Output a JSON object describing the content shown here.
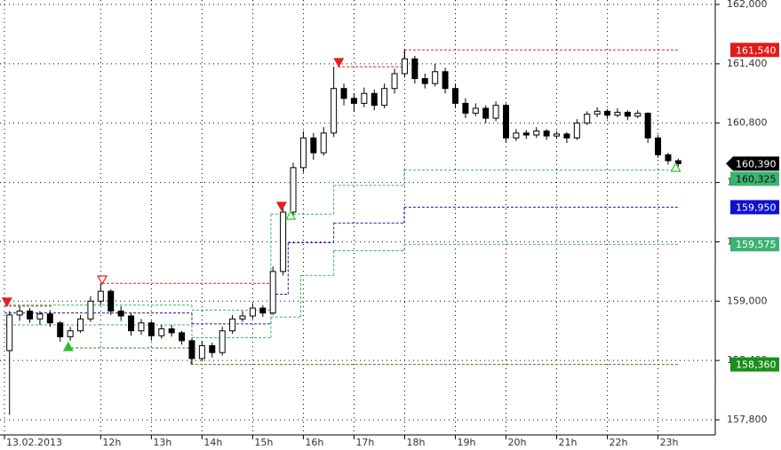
{
  "chart_data": {
    "type": "candlestick",
    "xlim": [
      10.1,
      24.13
    ],
    "xticks": [
      {
        "value": 10.1,
        "label": "13.02.2013"
      },
      {
        "value": 12,
        "label": "12h"
      },
      {
        "value": 13,
        "label": "13h"
      },
      {
        "value": 14,
        "label": "14h"
      },
      {
        "value": 15,
        "label": "15h"
      },
      {
        "value": 16,
        "label": "16h"
      },
      {
        "value": 17,
        "label": "17h"
      },
      {
        "value": 18,
        "label": "18h"
      },
      {
        "value": 19,
        "label": "19h"
      },
      {
        "value": 20,
        "label": "20h"
      },
      {
        "value": 21,
        "label": "21h"
      },
      {
        "value": 22,
        "label": "22h"
      },
      {
        "value": 23,
        "label": "23h"
      }
    ],
    "ylim": [
      157800,
      162000
    ],
    "yticks": [
      {
        "value": 157800,
        "label": "157,800"
      },
      {
        "value": 158400,
        "label": "158,400"
      },
      {
        "value": 159000,
        "label": "159,000"
      },
      {
        "value": 159600,
        "label": "159,600"
      },
      {
        "value": 160200,
        "label": "160,200"
      },
      {
        "value": 160800,
        "label": "160,800"
      },
      {
        "value": 161400,
        "label": "161,400"
      },
      {
        "value": 162000,
        "label": "162,000"
      }
    ],
    "grid": true,
    "up_color": "#ffffff",
    "down_color": "#000000",
    "x": [
      10.2,
      10.4,
      10.6,
      10.8,
      11.0,
      11.2,
      11.4,
      11.6,
      11.8,
      12.0,
      12.2,
      12.4,
      12.6,
      12.8,
      13.0,
      13.2,
      13.4,
      13.6,
      13.8,
      14.0,
      14.2,
      14.4,
      14.6,
      14.8,
      15.0,
      15.2,
      15.4,
      15.6,
      15.8,
      16.0,
      16.2,
      16.4,
      16.6,
      16.8,
      17.0,
      17.2,
      17.4,
      17.6,
      17.8,
      18.0,
      18.2,
      18.4,
      18.6,
      18.8,
      19.0,
      19.2,
      19.4,
      19.6,
      19.8,
      20.0,
      20.2,
      20.4,
      20.6,
      20.8,
      21.0,
      21.2,
      21.4,
      21.6,
      21.8,
      22.0,
      22.2,
      22.4,
      22.6,
      22.8,
      23.0,
      23.2,
      23.4
    ],
    "ohlc": [
      [
        158500,
        158900,
        157850,
        158860
      ],
      [
        158860,
        158950,
        158800,
        158900
      ],
      [
        158900,
        158930,
        158780,
        158820
      ],
      [
        158820,
        158900,
        158760,
        158870
      ],
      [
        158870,
        158910,
        158740,
        158780
      ],
      [
        158780,
        158800,
        158590,
        158640
      ],
      [
        158640,
        158740,
        158600,
        158700
      ],
      [
        158700,
        158860,
        158680,
        158820
      ],
      [
        158820,
        159050,
        158790,
        159000
      ],
      [
        159000,
        159180,
        158960,
        159100
      ],
      [
        159100,
        159120,
        158860,
        158900
      ],
      [
        158900,
        158950,
        158800,
        158850
      ],
      [
        158850,
        158880,
        158650,
        158700
      ],
      [
        158700,
        158820,
        158660,
        158780
      ],
      [
        158780,
        158800,
        158600,
        158650
      ],
      [
        158650,
        158760,
        158620,
        158720
      ],
      [
        158720,
        158760,
        158640,
        158680
      ],
      [
        158680,
        158700,
        158560,
        158600
      ],
      [
        158600,
        158630,
        158360,
        158420
      ],
      [
        158420,
        158600,
        158390,
        158550
      ],
      [
        158550,
        158580,
        158430,
        158480
      ],
      [
        158480,
        158740,
        158450,
        158700
      ],
      [
        158700,
        158860,
        158670,
        158820
      ],
      [
        158820,
        158900,
        158790,
        158850
      ],
      [
        158850,
        158980,
        158820,
        158930
      ],
      [
        158930,
        158960,
        158840,
        158880
      ],
      [
        158880,
        159350,
        158860,
        159300
      ],
      [
        159300,
        159950,
        159260,
        159900
      ],
      [
        159900,
        160400,
        159850,
        160350
      ],
      [
        160350,
        160720,
        160300,
        160650
      ],
      [
        160650,
        160700,
        160430,
        160500
      ],
      [
        160500,
        160760,
        160470,
        160700
      ],
      [
        160700,
        161370,
        160660,
        161150
      ],
      [
        161150,
        161200,
        160980,
        161050
      ],
      [
        161050,
        161100,
        160920,
        161000
      ],
      [
        161000,
        161160,
        160960,
        161100
      ],
      [
        161100,
        161140,
        160930,
        160980
      ],
      [
        160980,
        161200,
        160950,
        161150
      ],
      [
        161150,
        161350,
        161100,
        161300
      ],
      [
        161300,
        161540,
        161260,
        161450
      ],
      [
        161450,
        161480,
        161200,
        161250
      ],
      [
        161250,
        161300,
        161150,
        161200
      ],
      [
        161200,
        161400,
        161170,
        161320
      ],
      [
        161320,
        161360,
        161100,
        161150
      ],
      [
        161150,
        161200,
        160950,
        161000
      ],
      [
        161000,
        161050,
        160850,
        160900
      ],
      [
        160900,
        161000,
        160870,
        160950
      ],
      [
        160950,
        160980,
        160800,
        160850
      ],
      [
        160850,
        161020,
        160820,
        160980
      ],
      [
        160980,
        161000,
        160600,
        160650
      ],
      [
        160650,
        160740,
        160620,
        160700
      ],
      [
        160700,
        160730,
        160640,
        160680
      ],
      [
        160680,
        160760,
        160650,
        160720
      ],
      [
        160720,
        160740,
        160630,
        160670
      ],
      [
        160670,
        160720,
        160640,
        160690
      ],
      [
        160690,
        160710,
        160600,
        160650
      ],
      [
        160650,
        160840,
        160630,
        160800
      ],
      [
        160800,
        160920,
        160780,
        160890
      ],
      [
        160890,
        160960,
        160860,
        160920
      ],
      [
        160920,
        160940,
        160840,
        160880
      ],
      [
        160880,
        160950,
        160860,
        160910
      ],
      [
        160910,
        160930,
        160830,
        160870
      ],
      [
        160870,
        160930,
        160850,
        160900
      ],
      [
        160900,
        160910,
        160600,
        160650
      ],
      [
        160650,
        160680,
        160450,
        160480
      ],
      [
        160480,
        160500,
        160380,
        160420
      ],
      [
        160420,
        160440,
        160360,
        160390
      ]
    ],
    "levels": [
      {
        "color": "#e02020",
        "segments": [
          [
            10.1,
            11.06,
            158950
          ],
          [
            12.03,
            15.36,
            159180
          ],
          [
            16.68,
            17.99,
            161370
          ],
          [
            17.99,
            23.43,
            161540
          ]
        ]
      },
      {
        "color": "#3cb371",
        "segments": [
          [
            10.1,
            13.8,
            158960
          ],
          [
            13.8,
            15.36,
            158910
          ],
          [
            15.36,
            16.6,
            159880
          ],
          [
            16.6,
            17.99,
            160170
          ],
          [
            17.99,
            23.43,
            160325
          ]
        ]
      },
      {
        "color": "#1a1aa0",
        "segments": [
          [
            10.1,
            13.8,
            158880
          ],
          [
            13.8,
            15.36,
            158770
          ],
          [
            15.36,
            15.7,
            159070
          ],
          [
            15.7,
            16.6,
            159590
          ],
          [
            16.6,
            17.99,
            159790
          ],
          [
            17.99,
            23.43,
            159950
          ]
        ]
      },
      {
        "color": "#3cb371",
        "segments": [
          [
            10.1,
            13.8,
            158760
          ],
          [
            13.8,
            15.36,
            158630
          ],
          [
            15.36,
            15.95,
            158840
          ],
          [
            15.95,
            16.6,
            159260
          ],
          [
            16.6,
            17.99,
            159510
          ],
          [
            17.99,
            23.43,
            159575
          ]
        ]
      },
      {
        "color": "#1f8f1f",
        "segments": [
          [
            11.33,
            13.78,
            158527
          ],
          [
            13.78,
            23.43,
            158360
          ]
        ]
      }
    ],
    "signals": [
      {
        "x": 10.15,
        "value": 158950,
        "direction": "down",
        "filled": true,
        "color": "#e02020"
      },
      {
        "x": 12.03,
        "value": 159173,
        "direction": "down",
        "filled": false,
        "color": "#e02020"
      },
      {
        "x": 15.57,
        "value": 159918,
        "direction": "down",
        "filled": true,
        "color": "#e02020"
      },
      {
        "x": 16.7,
        "value": 161372,
        "direction": "down",
        "filled": true,
        "color": "#e02020"
      },
      {
        "x": 11.36,
        "value": 158545,
        "direction": "up",
        "filled": true,
        "color": "#2ec02e"
      },
      {
        "x": 15.75,
        "value": 159873,
        "direction": "up",
        "filled": false,
        "color": "#2ec02e"
      },
      {
        "x": 23.35,
        "value": 160358,
        "direction": "up",
        "filled": false,
        "color": "#2ec02e"
      }
    ],
    "price_labels": [
      {
        "value": 161540,
        "label": "161,540",
        "color": "#e31b1b",
        "text_color": "#ffffff",
        "arrow": false
      },
      {
        "value": 160390,
        "label": "160,390",
        "color": "#000000",
        "text_color": "#ffffff",
        "arrow": true
      },
      {
        "value": 160325,
        "label": "160,325",
        "color": "#3cb371",
        "text_color": "#111111",
        "arrow": false
      },
      {
        "value": 159950,
        "label": "159,950",
        "color": "#1010d0",
        "text_color": "#ffffff",
        "arrow": false
      },
      {
        "value": 159575,
        "label": "159,575",
        "color": "#3cb371",
        "text_color": "#ffffff",
        "arrow": false
      },
      {
        "value": 158360,
        "label": "158,360",
        "color": "#1a8f1a",
        "text_color": "#ffffff",
        "arrow": false
      }
    ]
  }
}
